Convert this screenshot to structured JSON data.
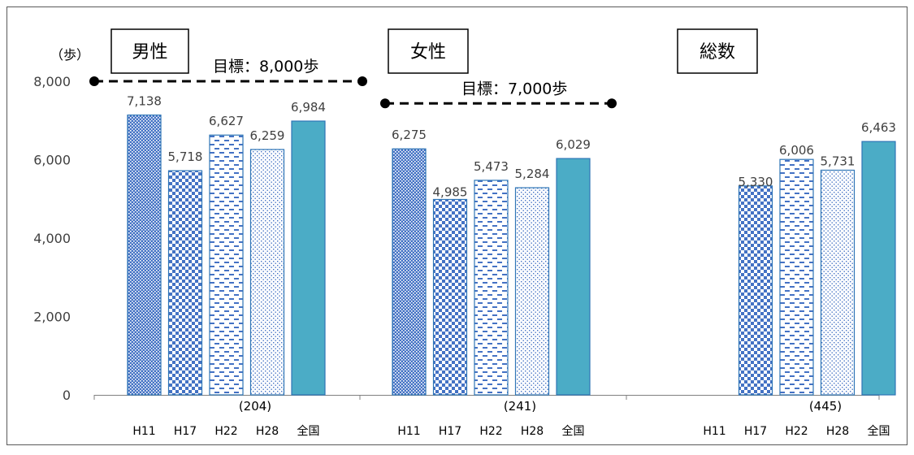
{
  "chart_data": {
    "type": "bar",
    "y_unit_label": "（歩）",
    "yticks": [
      "0",
      "2,000",
      "4,000",
      "6,000",
      "8,000"
    ],
    "ylim": [
      0,
      8000
    ],
    "grid": false,
    "categories": [
      "H11",
      "H17",
      "H22",
      "H28",
      "全国"
    ],
    "groups": [
      {
        "label": "男性",
        "n": "(204)",
        "values": [
          7138,
          5718,
          6627,
          6259,
          6984
        ],
        "value_labels": [
          "7,138",
          "5,718",
          "6,627",
          "6,259",
          "6,984"
        ],
        "goal": {
          "label": "目標：8,000歩",
          "value": 8000
        }
      },
      {
        "label": "女性",
        "n": "(241)",
        "values": [
          6275,
          4985,
          5473,
          5284,
          6029
        ],
        "value_labels": [
          "6,275",
          "4,985",
          "5,473",
          "5,284",
          "6,029"
        ],
        "goal": {
          "label": "目標：7,000歩",
          "value": 7000
        }
      },
      {
        "label": "総数",
        "n": "(445)",
        "values": [
          null,
          5330,
          6006,
          5731,
          6463
        ],
        "value_labels": [
          "",
          "5,330",
          "6,006",
          "5,731",
          "6,463"
        ],
        "goal": null
      }
    ],
    "series_styles": [
      {
        "category": "H11",
        "fill": "#4472c4",
        "pattern": "dense-dots"
      },
      {
        "category": "H17",
        "fill": "#4472c4",
        "pattern": "checker"
      },
      {
        "category": "H22",
        "fill": "#4472c4",
        "pattern": "dashes"
      },
      {
        "category": "H28",
        "fill": "#4472c4",
        "pattern": "sparse-dots"
      },
      {
        "category": "全国",
        "fill": "#4bacc6",
        "pattern": "solid"
      }
    ]
  }
}
